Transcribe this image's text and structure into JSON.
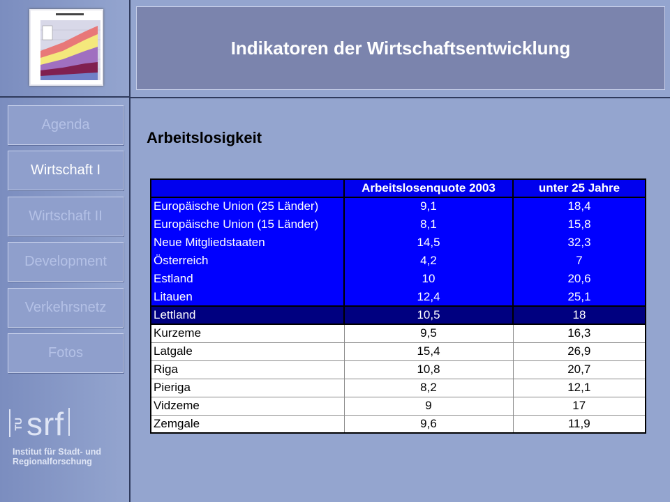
{
  "header": {
    "title": "Indikatoren der Wirtschaftsentwicklung"
  },
  "sidebar": {
    "thumbnail_icon": "chart-thumbnail-icon",
    "items": [
      {
        "label": "Agenda",
        "active": false
      },
      {
        "label": "Wirtschaft I",
        "active": true
      },
      {
        "label": "Wirtschaft II",
        "active": false
      },
      {
        "label": "Development",
        "active": false
      },
      {
        "label": "Verkehrsnetz",
        "active": false
      },
      {
        "label": "Fotos",
        "active": false
      }
    ]
  },
  "logo": {
    "tu": "TU",
    "srf": "srf",
    "line1": "Institut für Stadt- und",
    "line2": "Regionalforschung"
  },
  "main": {
    "title": "Arbeitslosigkeit"
  },
  "table": {
    "headers": [
      "",
      "Arbeitslosenquote 2003",
      "unter 25 Jahre"
    ],
    "rows": [
      {
        "style": "blue",
        "cells": [
          "Europäische Union (25 Länder)",
          "9,1",
          "18,4"
        ]
      },
      {
        "style": "blue",
        "cells": [
          "Europäische Union (15 Länder)",
          "8,1",
          "15,8"
        ]
      },
      {
        "style": "blue",
        "cells": [
          "Neue Mitgliedstaaten",
          "14,5",
          "32,3"
        ]
      },
      {
        "style": "blue",
        "cells": [
          "Österreich",
          "4,2",
          "7"
        ]
      },
      {
        "style": "blue",
        "cells": [
          "Estland",
          "10",
          "20,6"
        ]
      },
      {
        "style": "blue",
        "cells": [
          "Litauen",
          "12,4",
          "25,1"
        ]
      },
      {
        "style": "dark",
        "cells": [
          "Lettland",
          "10,5",
          "18"
        ]
      },
      {
        "style": "white",
        "cells": [
          "Kurzeme",
          "9,5",
          "16,3"
        ]
      },
      {
        "style": "white",
        "cells": [
          "Latgale",
          "15,4",
          "26,9"
        ]
      },
      {
        "style": "white",
        "cells": [
          "Riga",
          "10,8",
          "20,7"
        ]
      },
      {
        "style": "white",
        "cells": [
          "Pieriga",
          "8,2",
          "12,1"
        ]
      },
      {
        "style": "white",
        "cells": [
          "Vidzeme",
          "9",
          "17"
        ]
      },
      {
        "style": "white",
        "cells": [
          "Zemgale",
          "9,6",
          "11,9"
        ]
      }
    ]
  },
  "colors": {
    "background": "#94a5cf",
    "header_box": "#7b84ad",
    "table_blue": "#0000ff",
    "table_dark": "#000080"
  }
}
